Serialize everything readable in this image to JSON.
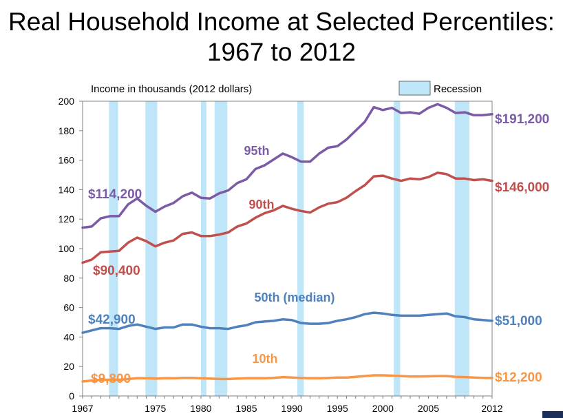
{
  "title": {
    "line1": "Real Household Income at Selected Percentiles:",
    "line2": "1967 to 2012"
  },
  "chart_data": {
    "type": "line",
    "title": "Real Household Income at Selected Percentiles: 1967 to 2012",
    "ylabel": "Income in thousands (2012 dollars)",
    "xlabel": "",
    "ylim": [
      0,
      200
    ],
    "xlim": [
      1967,
      2012
    ],
    "y_ticks": [
      0,
      20,
      40,
      60,
      80,
      100,
      120,
      140,
      160,
      180,
      200
    ],
    "x_ticks": [
      1967,
      1975,
      1980,
      1985,
      1990,
      1995,
      2000,
      2005,
      2012
    ],
    "grid": false,
    "legend": {
      "label": "Recession",
      "position": "top-right",
      "color": "#bfe6f8"
    },
    "recessions": [
      [
        1969.9,
        1970.9
      ],
      [
        1973.9,
        1975.2
      ],
      [
        1980.0,
        1980.6
      ],
      [
        1981.5,
        1982.9
      ],
      [
        1990.6,
        1991.3
      ],
      [
        2001.2,
        2001.9
      ],
      [
        2007.9,
        2009.5
      ]
    ],
    "x": [
      1967,
      1968,
      1969,
      1970,
      1971,
      1972,
      1973,
      1974,
      1975,
      1976,
      1977,
      1978,
      1979,
      1980,
      1981,
      1982,
      1983,
      1984,
      1985,
      1986,
      1987,
      1988,
      1989,
      1990,
      1991,
      1992,
      1993,
      1994,
      1995,
      1996,
      1997,
      1998,
      1999,
      2000,
      2001,
      2002,
      2003,
      2004,
      2005,
      2006,
      2007,
      2008,
      2009,
      2010,
      2011,
      2012
    ],
    "series": [
      {
        "name": "95th",
        "color": "#7b5aa6",
        "start_label": "$114,200",
        "end_label": "$191,200",
        "values": [
          114.2,
          115,
          120.5,
          122,
          122,
          130,
          134,
          129,
          125,
          128.5,
          131,
          135.5,
          138,
          134.5,
          134,
          137.5,
          139.5,
          144.5,
          147,
          154,
          156.5,
          160.5,
          164.5,
          162,
          159,
          159,
          164.5,
          168.5,
          169.5,
          174,
          180,
          186,
          196,
          194,
          195.5,
          192,
          192.5,
          191.5,
          195.5,
          198,
          195.5,
          192,
          192.5,
          190.5,
          190.5,
          191.2
        ]
      },
      {
        "name": "90th",
        "color": "#c0504d",
        "start_label": "$90,400",
        "end_label": "$146,000",
        "values": [
          90.4,
          92.5,
          97.5,
          98,
          98.5,
          104,
          107.5,
          105,
          101.5,
          104,
          105.5,
          110,
          111,
          108.5,
          108.5,
          109.5,
          111,
          115,
          117,
          121,
          124,
          126,
          129,
          127,
          125.5,
          124.5,
          128,
          130.5,
          131.5,
          134.5,
          139,
          143,
          149,
          149.5,
          147.5,
          146,
          147.5,
          147,
          148.5,
          151.5,
          150.5,
          147.5,
          147.5,
          146.5,
          147,
          146
        ]
      },
      {
        "name": "50th (median)",
        "color": "#4f81bd",
        "start_label": "$42,900",
        "end_label": "$51,000",
        "values": [
          42.9,
          44.5,
          46,
          46,
          45.5,
          47.5,
          48.5,
          47,
          45.5,
          46.5,
          46.5,
          48.5,
          48.5,
          47,
          46,
          46,
          45.5,
          47,
          48,
          50,
          50.5,
          51,
          52,
          51.5,
          49.5,
          49,
          49,
          49.5,
          51,
          52,
          53.5,
          55.5,
          56.5,
          56,
          55,
          54.5,
          54.5,
          54.5,
          55,
          55.5,
          56,
          54,
          53.5,
          52,
          51.5,
          51
        ]
      },
      {
        "name": "10th",
        "color": "#f79646",
        "start_label": "$9,800",
        "end_label": "$12,200",
        "values": [
          9.8,
          10.5,
          11,
          11,
          11,
          11.5,
          12,
          12,
          11.8,
          12,
          12,
          12.3,
          12.3,
          12,
          11.8,
          11.5,
          11.5,
          11.8,
          12,
          12,
          12,
          12.3,
          12.8,
          12.5,
          12.2,
          12,
          12,
          12.2,
          12.5,
          12.5,
          13,
          13.5,
          14,
          14,
          13.8,
          13.5,
          13.2,
          13.2,
          13.3,
          13.5,
          13.5,
          13,
          12.8,
          12.5,
          12.3,
          12.2
        ]
      }
    ]
  }
}
